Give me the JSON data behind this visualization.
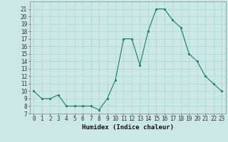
{
  "x": [
    0,
    1,
    2,
    3,
    4,
    5,
    6,
    7,
    8,
    9,
    10,
    11,
    12,
    13,
    14,
    15,
    16,
    17,
    18,
    19,
    20,
    21,
    22,
    23
  ],
  "y": [
    10,
    9,
    9,
    9.5,
    8,
    8,
    8,
    8,
    7.5,
    9,
    11.5,
    17,
    17,
    13.5,
    18,
    21,
    21,
    19.5,
    18.5,
    15,
    14,
    12,
    11,
    10
  ],
  "xlabel": "Humidex (Indice chaleur)",
  "ylim": [
    7,
    22
  ],
  "xlim": [
    -0.5,
    23.5
  ],
  "yticks": [
    7,
    8,
    9,
    10,
    11,
    12,
    13,
    14,
    15,
    16,
    17,
    18,
    19,
    20,
    21
  ],
  "xticks": [
    0,
    1,
    2,
    3,
    4,
    5,
    6,
    7,
    8,
    9,
    10,
    11,
    12,
    13,
    14,
    15,
    16,
    17,
    18,
    19,
    20,
    21,
    22,
    23
  ],
  "line_color": "#1a7a6e",
  "marker_color": "#1a7a6e",
  "bg_color": "#cce8e4",
  "grid_color": "#aad4cf",
  "label_fontsize": 6.5,
  "tick_fontsize": 5.5
}
